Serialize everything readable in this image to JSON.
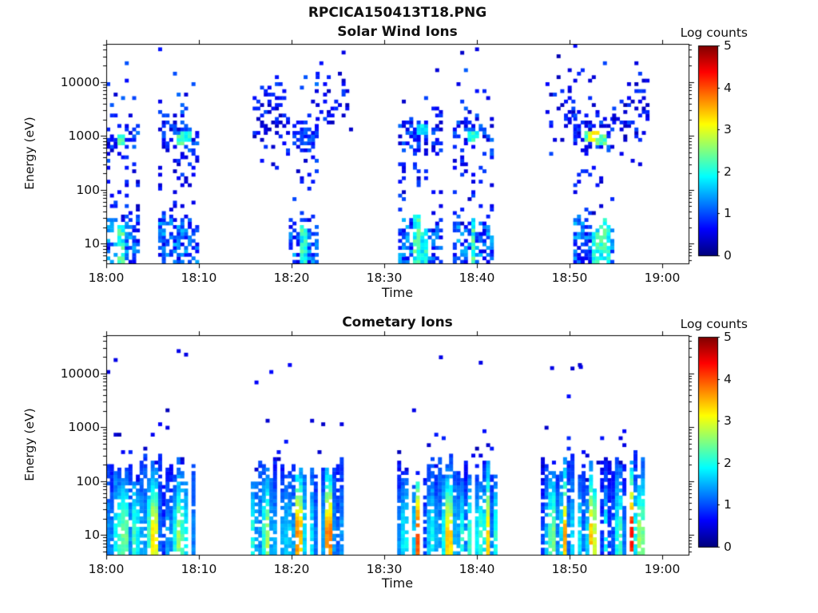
{
  "figure": {
    "title": "RPCICA150413T18.PNG",
    "background_color": "#ffffff",
    "text_color": "#111111"
  },
  "chart_data": [
    {
      "type": "heatmap",
      "title": "Solar Wind Ions",
      "xlabel": "Time",
      "ylabel": "Energy (eV)",
      "colorbar_label": "Log counts",
      "colormap": "jet",
      "colorbar_range": [
        0,
        5
      ],
      "colorbar_ticks": [
        "0",
        "1",
        "2",
        "3",
        "4",
        "5"
      ],
      "x_ticks": [
        {
          "minute": 0,
          "label": "18:00"
        },
        {
          "minute": 10,
          "label": "18:10"
        },
        {
          "minute": 20,
          "label": "18:20"
        },
        {
          "minute": 30,
          "label": "18:30"
        },
        {
          "minute": 40,
          "label": "18:40"
        },
        {
          "minute": 50,
          "label": "18:50"
        },
        {
          "minute": 60,
          "label": "19:00"
        }
      ],
      "x_range_minutes": [
        0,
        62.8
      ],
      "y_scale": "log",
      "y_range_ev": [
        4.3,
        51000
      ],
      "y_ticks": [
        {
          "value": 10,
          "label": "10"
        },
        {
          "value": 100,
          "label": "100"
        },
        {
          "value": 1000,
          "label": "1000"
        },
        {
          "value": 10000,
          "label": "10000"
        }
      ],
      "cell_minutes": 0.4,
      "seed": 20150413,
      "bursts": [
        {
          "kind": "full",
          "t0": 0.0,
          "t1": 3.4,
          "lowHot": [
            [
              0.9,
              1.7
            ]
          ],
          "beamHot": [
            [
              1.4,
              2.95,
              2.3
            ]
          ]
        },
        {
          "kind": "full",
          "t0": 5.6,
          "t1": 9.8,
          "lowHot": [],
          "beamHot": [
            [
              7.8,
              2.95,
              2.2
            ],
            [
              8.4,
              3.02,
              2.0
            ]
          ]
        },
        {
          "kind": "sparse",
          "t0": 15.8,
          "t1": 19.7,
          "p": 0.32,
          "center": 3.35,
          "width": 0.55
        },
        {
          "kind": "full",
          "t0": 19.7,
          "t1": 22.6,
          "lowHot": [
            [
              20.5,
              21.4
            ]
          ],
          "beamHot": []
        },
        {
          "kind": "sparse",
          "t0": 22.6,
          "t1": 26.2,
          "p": 0.2,
          "center": 3.6,
          "width": 0.5
        },
        {
          "kind": "full",
          "t0": 31.5,
          "t1": 36.0,
          "lowHot": [
            [
              33.0,
              34.6
            ]
          ],
          "beamHot": [
            [
              33.8,
              3.1,
              1.8
            ]
          ]
        },
        {
          "kind": "full",
          "t0": 37.4,
          "t1": 41.7,
          "lowHot": [
            [
              39.0,
              39.6
            ]
          ],
          "beamHot": [
            [
              39.3,
              3.0,
              2.0
            ]
          ]
        },
        {
          "kind": "sparse",
          "t0": 47.4,
          "t1": 50.4,
          "p": 0.25,
          "center": 3.5,
          "width": 0.55
        },
        {
          "kind": "full",
          "t0": 50.4,
          "t1": 54.6,
          "lowHot": [
            [
              52.2,
              54.2
            ]
          ],
          "beamHot": [
            [
              51.8,
              3.0,
              2.2
            ],
            [
              52.4,
              3.02,
              3.0
            ],
            [
              53.2,
              2.95,
              2.3
            ]
          ]
        },
        {
          "kind": "sparse",
          "t0": 54.6,
          "t1": 58.2,
          "p": 0.28,
          "center": 3.4,
          "width": 0.55
        }
      ],
      "high_points": [
        [
          25.4,
          4.55
        ]
      ]
    },
    {
      "type": "heatmap",
      "title": "Cometary Ions",
      "xlabel": "Time",
      "ylabel": "Energy (eV)",
      "colorbar_label": "Log counts",
      "colormap": "jet",
      "colorbar_range": [
        0,
        5
      ],
      "colorbar_ticks": [
        "0",
        "1",
        "2",
        "3",
        "4",
        "5"
      ],
      "x_ticks": [
        {
          "minute": 0,
          "label": "18:00"
        },
        {
          "minute": 10,
          "label": "18:10"
        },
        {
          "minute": 20,
          "label": "18:20"
        },
        {
          "minute": 30,
          "label": "18:30"
        },
        {
          "minute": 40,
          "label": "18:40"
        },
        {
          "minute": 50,
          "label": "18:50"
        },
        {
          "minute": 60,
          "label": "19:00"
        }
      ],
      "x_range_minutes": [
        0,
        62.8
      ],
      "y_scale": "log",
      "y_range_ev": [
        4.3,
        51000
      ],
      "y_ticks": [
        {
          "value": 10,
          "label": "10"
        },
        {
          "value": 100,
          "label": "100"
        },
        {
          "value": 1000,
          "label": "1000"
        },
        {
          "value": 10000,
          "label": "10000"
        }
      ],
      "cell_minutes": 0.4,
      "seed": 20150414,
      "bursts": [
        {
          "kind": "streaks",
          "t0": 0.0,
          "t1": 9.8,
          "hot": [
            [
              1.7,
              2.2,
              2.3
            ],
            [
              4.5,
              5.2,
              2.8
            ],
            [
              7.5,
              8.0,
              2.3
            ]
          ]
        },
        {
          "kind": "streaks",
          "t0": 15.6,
          "t1": 25.4,
          "hot": [
            [
              16.8,
              17.3,
              2.5
            ],
            [
              20.1,
              20.8,
              3.0
            ],
            [
              23.5,
              24.0,
              2.8
            ]
          ]
        },
        {
          "kind": "streaks",
          "t0": 31.4,
          "t1": 42.0,
          "hot": [
            [
              33.2,
              33.8,
              3.1
            ],
            [
              36.2,
              37.3,
              2.6
            ],
            [
              40.7,
              41.2,
              2.7
            ]
          ]
        },
        {
          "kind": "streaks",
          "t0": 46.9,
          "t1": 57.9,
          "hot": [
            [
              49.1,
              49.5,
              2.5
            ],
            [
              52.0,
              52.5,
              2.4
            ],
            [
              55.8,
              56.6,
              3.5
            ],
            [
              57.1,
              57.5,
              2.6
            ]
          ]
        }
      ],
      "high_points": [
        [
          0.8,
          4.25
        ],
        [
          8.4,
          4.35
        ],
        [
          35.9,
          4.3
        ],
        [
          40.2,
          4.2
        ],
        [
          47.9,
          4.1
        ],
        [
          51.0,
          4.12
        ]
      ]
    }
  ]
}
